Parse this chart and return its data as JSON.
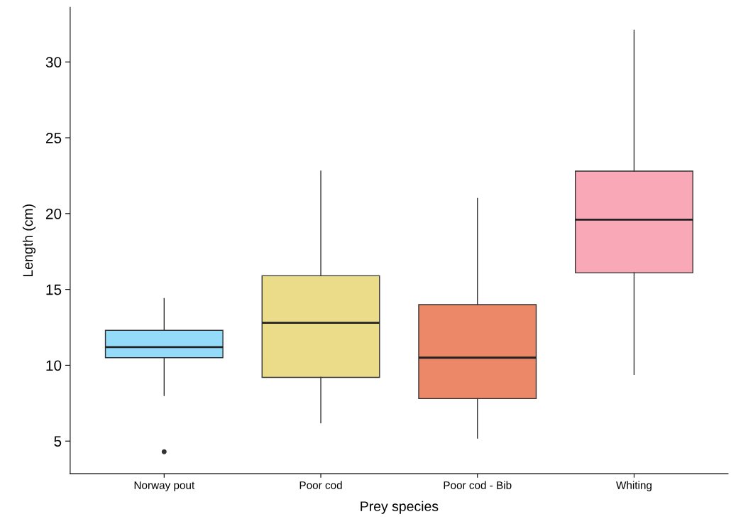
{
  "chart_data": {
    "type": "box",
    "xlabel": "Prey species",
    "ylabel": "Length (cm)",
    "categories": [
      "Norway pout",
      "Poor cod",
      "Poor cod - Bib",
      "Whiting"
    ],
    "colors": [
      "#94dbf9",
      "#ebdc8a",
      "#ec8867",
      "#f9a8b8"
    ],
    "boxes": [
      {
        "low": 8.0,
        "q1": 10.5,
        "median": 11.2,
        "q3": 12.3,
        "high": 14.4,
        "outliers": [
          4.3
        ]
      },
      {
        "low": 6.2,
        "q1": 9.2,
        "median": 12.8,
        "q3": 15.9,
        "high": 22.8
      },
      {
        "low": 5.2,
        "q1": 7.8,
        "median": 10.5,
        "q3": 14.0,
        "high": 21.0
      },
      {
        "low": 9.4,
        "q1": 16.1,
        "median": 19.6,
        "q3": 22.8,
        "high": 32.1
      }
    ],
    "ylim": [
      2.85,
      33.6
    ],
    "yticks": [
      5,
      10,
      15,
      20,
      25,
      30
    ],
    "grid": false
  }
}
